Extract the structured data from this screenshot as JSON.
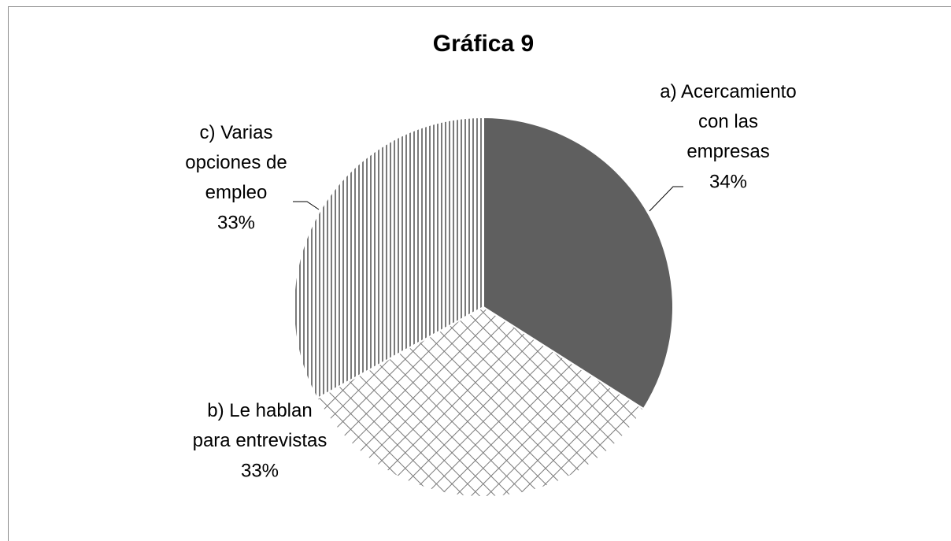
{
  "chart_data": {
    "type": "pie",
    "title": "Gráfica 9",
    "categories": [
      "a) Acercamiento con las empresas",
      "b) Le hablan para entrevistas",
      "c) Varias opciones de empleo"
    ],
    "values": [
      34,
      33,
      33
    ],
    "value_labels": [
      "34%",
      "33%",
      "33%"
    ],
    "colors": [
      "#5f5f5f",
      "#7a7a7a",
      "#7a7a7a"
    ]
  }
}
